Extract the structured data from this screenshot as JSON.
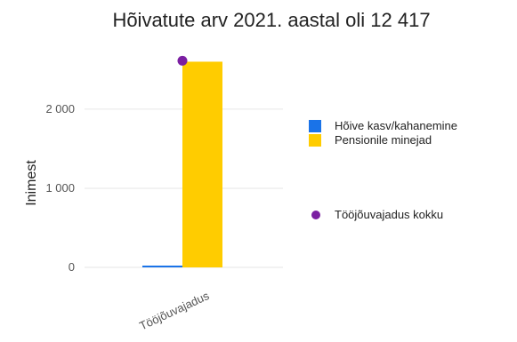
{
  "chart_data": {
    "type": "bar",
    "title": "Hõivatute arv 2021. aastal oli 12 417",
    "ylabel": "Inimest",
    "xlabel": "",
    "categories": [
      "Tööjõuvajadus"
    ],
    "ylim": [
      0,
      2650
    ],
    "yticks": [
      0,
      1000,
      2000
    ],
    "ytick_labels": [
      "0",
      "1 000",
      "2 000"
    ],
    "series": [
      {
        "name": "Hõive kasv/kahanemine",
        "type": "bar",
        "color": "#1a73e8",
        "values": [
          12
        ]
      },
      {
        "name": "Pensionile minejad",
        "type": "bar",
        "color": "#ffcc00",
        "values": [
          2600
        ]
      },
      {
        "name": "Tööjõuvajadus kokku",
        "type": "point",
        "color": "#7b1fa2",
        "values": [
          2612
        ]
      }
    ],
    "legend_position": "right",
    "grid": true
  }
}
